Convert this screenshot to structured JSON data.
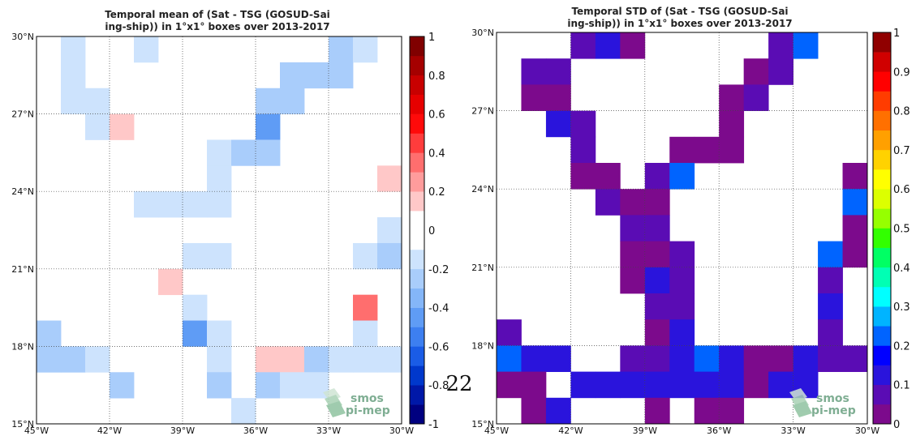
{
  "page_number": "22",
  "logo": {
    "line1": "smos",
    "line2": "pi-mep"
  },
  "chart_data": [
    {
      "type": "heatmap",
      "title_line1": "Temporal mean of (Sat - TSG (GOSUD-Sai",
      "title_line2": "ing-ship)) in 1°x1° boxes over 2013-2017",
      "xlim": [
        -45,
        -30
      ],
      "ylim": [
        15,
        30
      ],
      "x_ticks": [
        -45,
        -42,
        -39,
        -36,
        -33,
        -30
      ],
      "x_tick_labels": [
        "45°W",
        "42°W",
        "39°W",
        "36°W",
        "33°W",
        "30°W"
      ],
      "y_ticks": [
        15,
        18,
        21,
        24,
        27,
        30
      ],
      "y_tick_labels": [
        "15°N",
        "18°N",
        "21°N",
        "24°N",
        "27°N",
        "30°N"
      ],
      "grid": true,
      "colorbar": {
        "min": -1,
        "max": 1,
        "ticks": [
          -1,
          -0.8,
          -0.6,
          -0.4,
          -0.2,
          0,
          0.2,
          0.4,
          0.6,
          0.8,
          1
        ],
        "tick_labels": [
          "-1",
          "-0.8",
          "-0.6",
          "-0.4",
          "-0.2",
          "0",
          "0.2",
          "0.4",
          "0.6",
          "0.8",
          "1"
        ],
        "colors": [
          "#000080",
          "#0018a8",
          "#0038cc",
          "#1a5ce6",
          "#3d7ff0",
          "#5f9cf5",
          "#84b6f8",
          "#a9cdfb",
          "#cde3fd",
          "#ffffff",
          "#ffffff",
          "#ffc8c8",
          "#ff9c9c",
          "#ff6e6e",
          "#ff3c3c",
          "#ff0a0a",
          "#e60000",
          "#c80000",
          "#a50000",
          "#800000"
        ]
      },
      "cells": [
        {
          "lon": -44,
          "lat": 29,
          "v": -0.18
        },
        {
          "lon": -41,
          "lat": 29,
          "v": -0.18
        },
        {
          "lon": -33,
          "lat": 29,
          "v": -0.3
        },
        {
          "lon": -32,
          "lat": 29,
          "v": -0.18
        },
        {
          "lon": -44,
          "lat": 28,
          "v": -0.18
        },
        {
          "lon": -35,
          "lat": 28,
          "v": -0.3
        },
        {
          "lon": -34,
          "lat": 28,
          "v": -0.3
        },
        {
          "lon": -33,
          "lat": 28,
          "v": -0.3
        },
        {
          "lon": -44,
          "lat": 27,
          "v": -0.18
        },
        {
          "lon": -43,
          "lat": 27,
          "v": -0.18
        },
        {
          "lon": -36,
          "lat": 27,
          "v": -0.3
        },
        {
          "lon": -35,
          "lat": 27,
          "v": -0.3
        },
        {
          "lon": -43,
          "lat": 26,
          "v": -0.18
        },
        {
          "lon": -42,
          "lat": 26,
          "v": 0.18
        },
        {
          "lon": -36,
          "lat": 26,
          "v": -0.5
        },
        {
          "lon": -38,
          "lat": 25,
          "v": -0.18
        },
        {
          "lon": -37,
          "lat": 25,
          "v": -0.3
        },
        {
          "lon": -36,
          "lat": 25,
          "v": -0.3
        },
        {
          "lon": -38,
          "lat": 24,
          "v": -0.18
        },
        {
          "lon": -31,
          "lat": 24,
          "v": 0.18
        },
        {
          "lon": -41,
          "lat": 23,
          "v": -0.18
        },
        {
          "lon": -40,
          "lat": 23,
          "v": -0.18
        },
        {
          "lon": -39,
          "lat": 23,
          "v": -0.18
        },
        {
          "lon": -38,
          "lat": 23,
          "v": -0.18
        },
        {
          "lon": -31,
          "lat": 22,
          "v": -0.18
        },
        {
          "lon": -39,
          "lat": 21,
          "v": -0.18
        },
        {
          "lon": -38,
          "lat": 21,
          "v": -0.18
        },
        {
          "lon": -32,
          "lat": 21,
          "v": -0.18
        },
        {
          "lon": -31,
          "lat": 21,
          "v": -0.3
        },
        {
          "lon": -40,
          "lat": 20,
          "v": 0.18
        },
        {
          "lon": -39,
          "lat": 19,
          "v": -0.18
        },
        {
          "lon": -32,
          "lat": 19,
          "v": 0.3
        },
        {
          "lon": -45,
          "lat": 18,
          "v": -0.3
        },
        {
          "lon": -39,
          "lat": 18,
          "v": -0.5
        },
        {
          "lon": -38,
          "lat": 18,
          "v": -0.18
        },
        {
          "lon": -32,
          "lat": 18,
          "v": -0.18
        },
        {
          "lon": -45,
          "lat": 17,
          "v": -0.3
        },
        {
          "lon": -44,
          "lat": 17,
          "v": -0.3
        },
        {
          "lon": -43,
          "lat": 17,
          "v": -0.18
        },
        {
          "lon": -38,
          "lat": 17,
          "v": -0.18
        },
        {
          "lon": -36,
          "lat": 17,
          "v": 0.18
        },
        {
          "lon": -35,
          "lat": 17,
          "v": 0.18
        },
        {
          "lon": -34,
          "lat": 17,
          "v": -0.3
        },
        {
          "lon": -33,
          "lat": 17,
          "v": -0.18
        },
        {
          "lon": -32,
          "lat": 17,
          "v": -0.18
        },
        {
          "lon": -31,
          "lat": 17,
          "v": -0.18
        },
        {
          "lon": -42,
          "lat": 16,
          "v": -0.3
        },
        {
          "lon": -38,
          "lat": 16,
          "v": -0.3
        },
        {
          "lon": -36,
          "lat": 16,
          "v": -0.3
        },
        {
          "lon": -35,
          "lat": 16,
          "v": -0.18
        },
        {
          "lon": -34,
          "lat": 16,
          "v": -0.18
        },
        {
          "lon": -37,
          "lat": 15,
          "v": -0.18
        }
      ]
    },
    {
      "type": "heatmap",
      "title_line1": "Temporal STD of (Sat - TSG (GOSUD-Sai",
      "title_line2": "ing-ship)) in 1°x1° boxes over 2013-2017",
      "xlim": [
        -45,
        -30
      ],
      "ylim": [
        15,
        30
      ],
      "x_ticks": [
        -45,
        -42,
        -39,
        -36,
        -33,
        -30
      ],
      "x_tick_labels": [
        "45°W",
        "42°W",
        "39°W",
        "36°W",
        "33°W",
        "30°W"
      ],
      "y_ticks": [
        15,
        18,
        21,
        24,
        27,
        30
      ],
      "y_tick_labels": [
        "15°N",
        "18°N",
        "21°N",
        "24°N",
        "27°N",
        "30°N"
      ],
      "grid": true,
      "colorbar": {
        "min": 0,
        "max": 1,
        "ticks": [
          0,
          0.1,
          0.2,
          0.3,
          0.4,
          0.5,
          0.6,
          0.7,
          0.8,
          0.9,
          1
        ],
        "tick_labels": [
          "0",
          "0.1",
          "0.2",
          "0.3",
          "0.4",
          "0.5",
          "0.6",
          "0.7",
          "0.8",
          "0.9",
          "1"
        ],
        "colors": [
          "#7c0a8c",
          "#5a0cb4",
          "#2a14dc",
          "#0000ff",
          "#0064ff",
          "#00b4ff",
          "#00ffff",
          "#00ffb4",
          "#00ff64",
          "#32ff00",
          "#96ff00",
          "#dcff00",
          "#ffff00",
          "#ffd200",
          "#ffa000",
          "#ff7000",
          "#ff3c00",
          "#ff0000",
          "#d00000",
          "#900000"
        ]
      },
      "cells": [
        {
          "lon": -42,
          "lat": 29,
          "v": 0.08
        },
        {
          "lon": -41,
          "lat": 29,
          "v": 0.12
        },
        {
          "lon": -40,
          "lat": 29,
          "v": 0.03
        },
        {
          "lon": -34,
          "lat": 29,
          "v": 0.08
        },
        {
          "lon": -33,
          "lat": 29,
          "v": 0.22
        },
        {
          "lon": -44,
          "lat": 28,
          "v": 0.08
        },
        {
          "lon": -43,
          "lat": 28,
          "v": 0.08
        },
        {
          "lon": -35,
          "lat": 28,
          "v": 0.03
        },
        {
          "lon": -34,
          "lat": 28,
          "v": 0.08
        },
        {
          "lon": -44,
          "lat": 27,
          "v": 0.03
        },
        {
          "lon": -43,
          "lat": 27,
          "v": 0.03
        },
        {
          "lon": -36,
          "lat": 27,
          "v": 0.03
        },
        {
          "lon": -35,
          "lat": 27,
          "v": 0.08
        },
        {
          "lon": -43,
          "lat": 26,
          "v": 0.12
        },
        {
          "lon": -42,
          "lat": 26,
          "v": 0.08
        },
        {
          "lon": -36,
          "lat": 26,
          "v": 0.03
        },
        {
          "lon": -42,
          "lat": 25,
          "v": 0.08
        },
        {
          "lon": -38,
          "lat": 25,
          "v": 0.03
        },
        {
          "lon": -37,
          "lat": 25,
          "v": 0.03
        },
        {
          "lon": -36,
          "lat": 25,
          "v": 0.03
        },
        {
          "lon": -42,
          "lat": 24,
          "v": 0.03
        },
        {
          "lon": -41,
          "lat": 24,
          "v": 0.03
        },
        {
          "lon": -39,
          "lat": 24,
          "v": 0.08
        },
        {
          "lon": -38,
          "lat": 24,
          "v": 0.2
        },
        {
          "lon": -31,
          "lat": 24,
          "v": 0.03
        },
        {
          "lon": -41,
          "lat": 23,
          "v": 0.08
        },
        {
          "lon": -40,
          "lat": 23,
          "v": 0.03
        },
        {
          "lon": -39,
          "lat": 23,
          "v": 0.03
        },
        {
          "lon": -31,
          "lat": 23,
          "v": 0.2
        },
        {
          "lon": -40,
          "lat": 22,
          "v": 0.08
        },
        {
          "lon": -39,
          "lat": 22,
          "v": 0.08
        },
        {
          "lon": -31,
          "lat": 22,
          "v": 0.03
        },
        {
          "lon": -40,
          "lat": 21,
          "v": 0.03
        },
        {
          "lon": -39,
          "lat": 21,
          "v": 0.03
        },
        {
          "lon": -38,
          "lat": 21,
          "v": 0.08
        },
        {
          "lon": -32,
          "lat": 21,
          "v": 0.2
        },
        {
          "lon": -31,
          "lat": 21,
          "v": 0.03
        },
        {
          "lon": -40,
          "lat": 20,
          "v": 0.03
        },
        {
          "lon": -39,
          "lat": 20,
          "v": 0.12
        },
        {
          "lon": -38,
          "lat": 20,
          "v": 0.08
        },
        {
          "lon": -32,
          "lat": 20,
          "v": 0.08
        },
        {
          "lon": -39,
          "lat": 19,
          "v": 0.08
        },
        {
          "lon": -38,
          "lat": 19,
          "v": 0.08
        },
        {
          "lon": -32,
          "lat": 19,
          "v": 0.12
        },
        {
          "lon": -45,
          "lat": 18,
          "v": 0.08
        },
        {
          "lon": -39,
          "lat": 18,
          "v": 0.03
        },
        {
          "lon": -38,
          "lat": 18,
          "v": 0.12
        },
        {
          "lon": -32,
          "lat": 18,
          "v": 0.08
        },
        {
          "lon": -45,
          "lat": 17,
          "v": 0.2
        },
        {
          "lon": -44,
          "lat": 17,
          "v": 0.12
        },
        {
          "lon": -43,
          "lat": 17,
          "v": 0.12
        },
        {
          "lon": -40,
          "lat": 17,
          "v": 0.08
        },
        {
          "lon": -39,
          "lat": 17,
          "v": 0.08
        },
        {
          "lon": -38,
          "lat": 17,
          "v": 0.12
        },
        {
          "lon": -37,
          "lat": 17,
          "v": 0.2
        },
        {
          "lon": -36,
          "lat": 17,
          "v": 0.12
        },
        {
          "lon": -35,
          "lat": 17,
          "v": 0.03
        },
        {
          "lon": -34,
          "lat": 17,
          "v": 0.03
        },
        {
          "lon": -33,
          "lat": 17,
          "v": 0.12
        },
        {
          "lon": -32,
          "lat": 17,
          "v": 0.08
        },
        {
          "lon": -31,
          "lat": 17,
          "v": 0.08
        },
        {
          "lon": -45,
          "lat": 16,
          "v": 0.03
        },
        {
          "lon": -44,
          "lat": 16,
          "v": 0.03
        },
        {
          "lon": -42,
          "lat": 16,
          "v": 0.12
        },
        {
          "lon": -41,
          "lat": 16,
          "v": 0.12
        },
        {
          "lon": -40,
          "lat": 16,
          "v": 0.12
        },
        {
          "lon": -39,
          "lat": 16,
          "v": 0.12
        },
        {
          "lon": -38,
          "lat": 16,
          "v": 0.12
        },
        {
          "lon": -37,
          "lat": 16,
          "v": 0.12
        },
        {
          "lon": -36,
          "lat": 16,
          "v": 0.12
        },
        {
          "lon": -35,
          "lat": 16,
          "v": 0.03
        },
        {
          "lon": -34,
          "lat": 16,
          "v": 0.12
        },
        {
          "lon": -33,
          "lat": 16,
          "v": 0.12
        },
        {
          "lon": -44,
          "lat": 15,
          "v": 0.03
        },
        {
          "lon": -43,
          "lat": 15,
          "v": 0.12
        },
        {
          "lon": -39,
          "lat": 15,
          "v": 0.03
        },
        {
          "lon": -37,
          "lat": 15,
          "v": 0.03
        },
        {
          "lon": -36,
          "lat": 15,
          "v": 0.03
        }
      ]
    }
  ]
}
